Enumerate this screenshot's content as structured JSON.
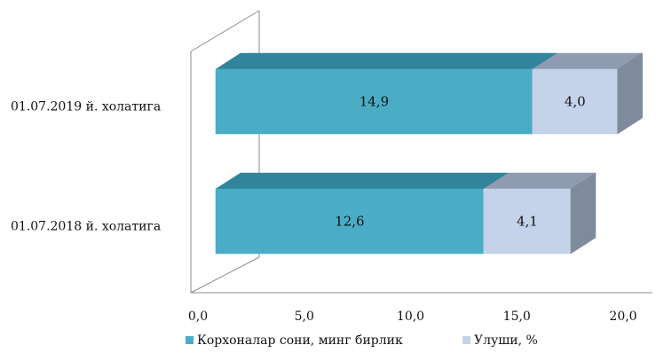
{
  "chart_data": {
    "type": "bar",
    "orientation": "horizontal",
    "stacked": true,
    "style": "3d",
    "categories": [
      "01.07.2019 й. холатига",
      "01.07.2018 й. холатига"
    ],
    "series": [
      {
        "name": "Корхоналар сони, минг бирлик",
        "values": [
          14.9,
          12.6
        ],
        "value_labels": [
          "14,9",
          "12,6"
        ]
      },
      {
        "name": "Улуши, %",
        "values": [
          4.0,
          4.1
        ],
        "value_labels": [
          "4,0",
          "4,1"
        ]
      }
    ],
    "xlim": [
      0,
      20
    ],
    "x_ticks": [
      0,
      5,
      10,
      15,
      20
    ],
    "x_tick_labels": [
      "0,0",
      "5,0",
      "10,0",
      "15,0",
      "20,0"
    ],
    "grid": false,
    "legend_position": "bottom",
    "colors": {
      "series_0_front": "#4bacc6",
      "series_0_top": "#31849b",
      "series_0_side": "#2e7082",
      "series_1_front": "#c5d3ea",
      "series_1_top": "#8e9bb0",
      "series_1_side": "#7f8a9c",
      "axis": "#8c8c8c"
    }
  }
}
